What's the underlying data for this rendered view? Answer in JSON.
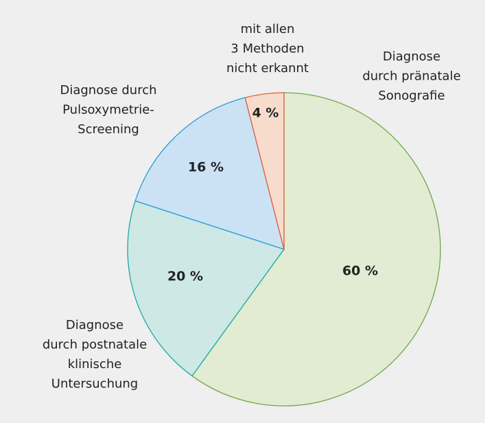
{
  "chart_data": {
    "type": "pie",
    "categories": [
      "Diagnose\ndurch pränatale\nSonografie",
      "Diagnose\ndurch postnatale\nklinische\nUntersuchung",
      "Diagnose durch\nPulsoxymetrie-\nScreening",
      "mit allen\n3 Methoden\nnicht erkannt"
    ],
    "values": [
      60,
      20,
      16,
      4
    ],
    "value_labels": [
      "60 %",
      "20 %",
      "16 %",
      "4 %"
    ],
    "colors": [
      "#e2ecd2",
      "#cde8e5",
      "#cbe2f4",
      "#f7dccd"
    ],
    "edge_colors": [
      "#6ea744",
      "#1ea8a2",
      "#2a9bd5",
      "#e15c3a"
    ]
  }
}
